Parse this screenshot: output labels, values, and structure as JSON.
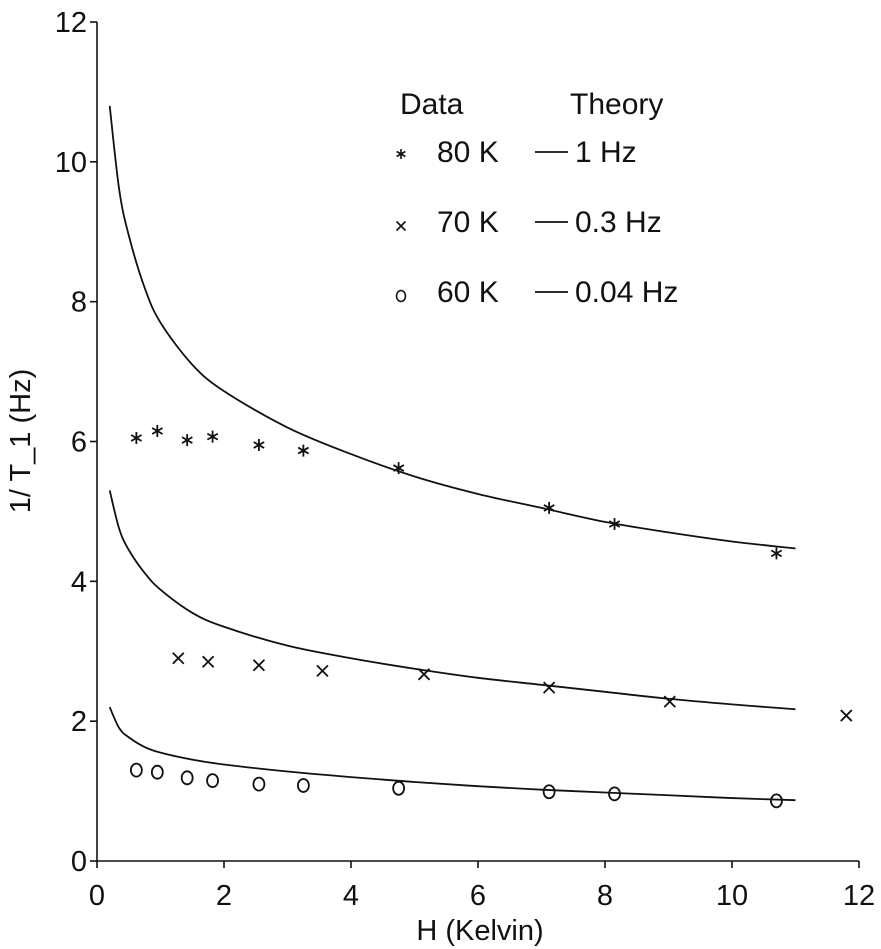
{
  "chart_data": {
    "type": "scatter",
    "title": "",
    "xlabel": "H (Kelvin)",
    "ylabel": "1/ T_1 (Hz)",
    "xlim": [
      0,
      12
    ],
    "ylim": [
      0,
      12
    ],
    "xticks": [
      "0",
      "2",
      "4",
      "6",
      "8",
      "10",
      "12"
    ],
    "yticks": [
      "0",
      "2",
      "4",
      "6",
      "8",
      "10",
      "12"
    ],
    "grid": false,
    "legend": {
      "position": "top-right",
      "data_header": "Data",
      "theory_header": "Theory"
    },
    "series": [
      {
        "name": "80 K",
        "theory_label": "1 Hz",
        "marker": "*",
        "points": [
          {
            "x": 0.62,
            "y": 6.05
          },
          {
            "x": 0.95,
            "y": 6.15
          },
          {
            "x": 1.42,
            "y": 6.02
          },
          {
            "x": 1.82,
            "y": 6.07
          },
          {
            "x": 2.55,
            "y": 5.95
          },
          {
            "x": 3.25,
            "y": 5.87
          },
          {
            "x": 4.75,
            "y": 5.62
          },
          {
            "x": 7.12,
            "y": 5.05
          },
          {
            "x": 8.15,
            "y": 4.82
          },
          {
            "x": 10.7,
            "y": 4.4
          }
        ],
        "theory": [
          {
            "x": 0.2,
            "y": 10.8
          },
          {
            "x": 0.35,
            "y": 9.6
          },
          {
            "x": 0.5,
            "y": 8.95
          },
          {
            "x": 0.75,
            "y": 8.2
          },
          {
            "x": 1.0,
            "y": 7.7
          },
          {
            "x": 1.5,
            "y": 7.1
          },
          {
            "x": 2.0,
            "y": 6.72
          },
          {
            "x": 3.0,
            "y": 6.2
          },
          {
            "x": 4.0,
            "y": 5.82
          },
          {
            "x": 5.0,
            "y": 5.5
          },
          {
            "x": 6.0,
            "y": 5.25
          },
          {
            "x": 7.0,
            "y": 5.05
          },
          {
            "x": 8.0,
            "y": 4.85
          },
          {
            "x": 9.0,
            "y": 4.7
          },
          {
            "x": 10.0,
            "y": 4.57
          },
          {
            "x": 11.0,
            "y": 4.47
          }
        ]
      },
      {
        "name": "70 K",
        "theory_label": "0.3 Hz",
        "marker": "x",
        "points": [
          {
            "x": 1.28,
            "y": 2.9
          },
          {
            "x": 1.75,
            "y": 2.85
          },
          {
            "x": 2.55,
            "y": 2.8
          },
          {
            "x": 3.55,
            "y": 2.72
          },
          {
            "x": 5.15,
            "y": 2.67
          },
          {
            "x": 7.12,
            "y": 2.48
          },
          {
            "x": 9.02,
            "y": 2.28
          },
          {
            "x": 11.8,
            "y": 2.08
          }
        ],
        "theory": [
          {
            "x": 0.2,
            "y": 5.3
          },
          {
            "x": 0.35,
            "y": 4.75
          },
          {
            "x": 0.5,
            "y": 4.45
          },
          {
            "x": 0.75,
            "y": 4.12
          },
          {
            "x": 1.0,
            "y": 3.88
          },
          {
            "x": 1.5,
            "y": 3.55
          },
          {
            "x": 2.0,
            "y": 3.35
          },
          {
            "x": 3.0,
            "y": 3.08
          },
          {
            "x": 4.0,
            "y": 2.9
          },
          {
            "x": 5.0,
            "y": 2.75
          },
          {
            "x": 6.0,
            "y": 2.62
          },
          {
            "x": 7.0,
            "y": 2.52
          },
          {
            "x": 8.0,
            "y": 2.42
          },
          {
            "x": 9.0,
            "y": 2.32
          },
          {
            "x": 10.0,
            "y": 2.24
          },
          {
            "x": 11.0,
            "y": 2.17
          }
        ]
      },
      {
        "name": "60 K",
        "theory_label": "0.04 Hz",
        "marker": "o",
        "points": [
          {
            "x": 0.62,
            "y": 1.3
          },
          {
            "x": 0.95,
            "y": 1.27
          },
          {
            "x": 1.42,
            "y": 1.19
          },
          {
            "x": 1.82,
            "y": 1.15
          },
          {
            "x": 2.55,
            "y": 1.1
          },
          {
            "x": 3.25,
            "y": 1.08
          },
          {
            "x": 4.75,
            "y": 1.04
          },
          {
            "x": 7.12,
            "y": 0.99
          },
          {
            "x": 8.15,
            "y": 0.96
          },
          {
            "x": 10.7,
            "y": 0.86
          }
        ],
        "theory": [
          {
            "x": 0.2,
            "y": 2.2
          },
          {
            "x": 0.35,
            "y": 1.9
          },
          {
            "x": 0.5,
            "y": 1.77
          },
          {
            "x": 0.75,
            "y": 1.63
          },
          {
            "x": 1.0,
            "y": 1.55
          },
          {
            "x": 1.5,
            "y": 1.45
          },
          {
            "x": 2.0,
            "y": 1.38
          },
          {
            "x": 3.0,
            "y": 1.28
          },
          {
            "x": 4.0,
            "y": 1.2
          },
          {
            "x": 5.0,
            "y": 1.13
          },
          {
            "x": 6.0,
            "y": 1.07
          },
          {
            "x": 7.0,
            "y": 1.02
          },
          {
            "x": 8.0,
            "y": 0.98
          },
          {
            "x": 9.0,
            "y": 0.94
          },
          {
            "x": 10.0,
            "y": 0.9
          },
          {
            "x": 11.0,
            "y": 0.87
          }
        ]
      }
    ]
  }
}
